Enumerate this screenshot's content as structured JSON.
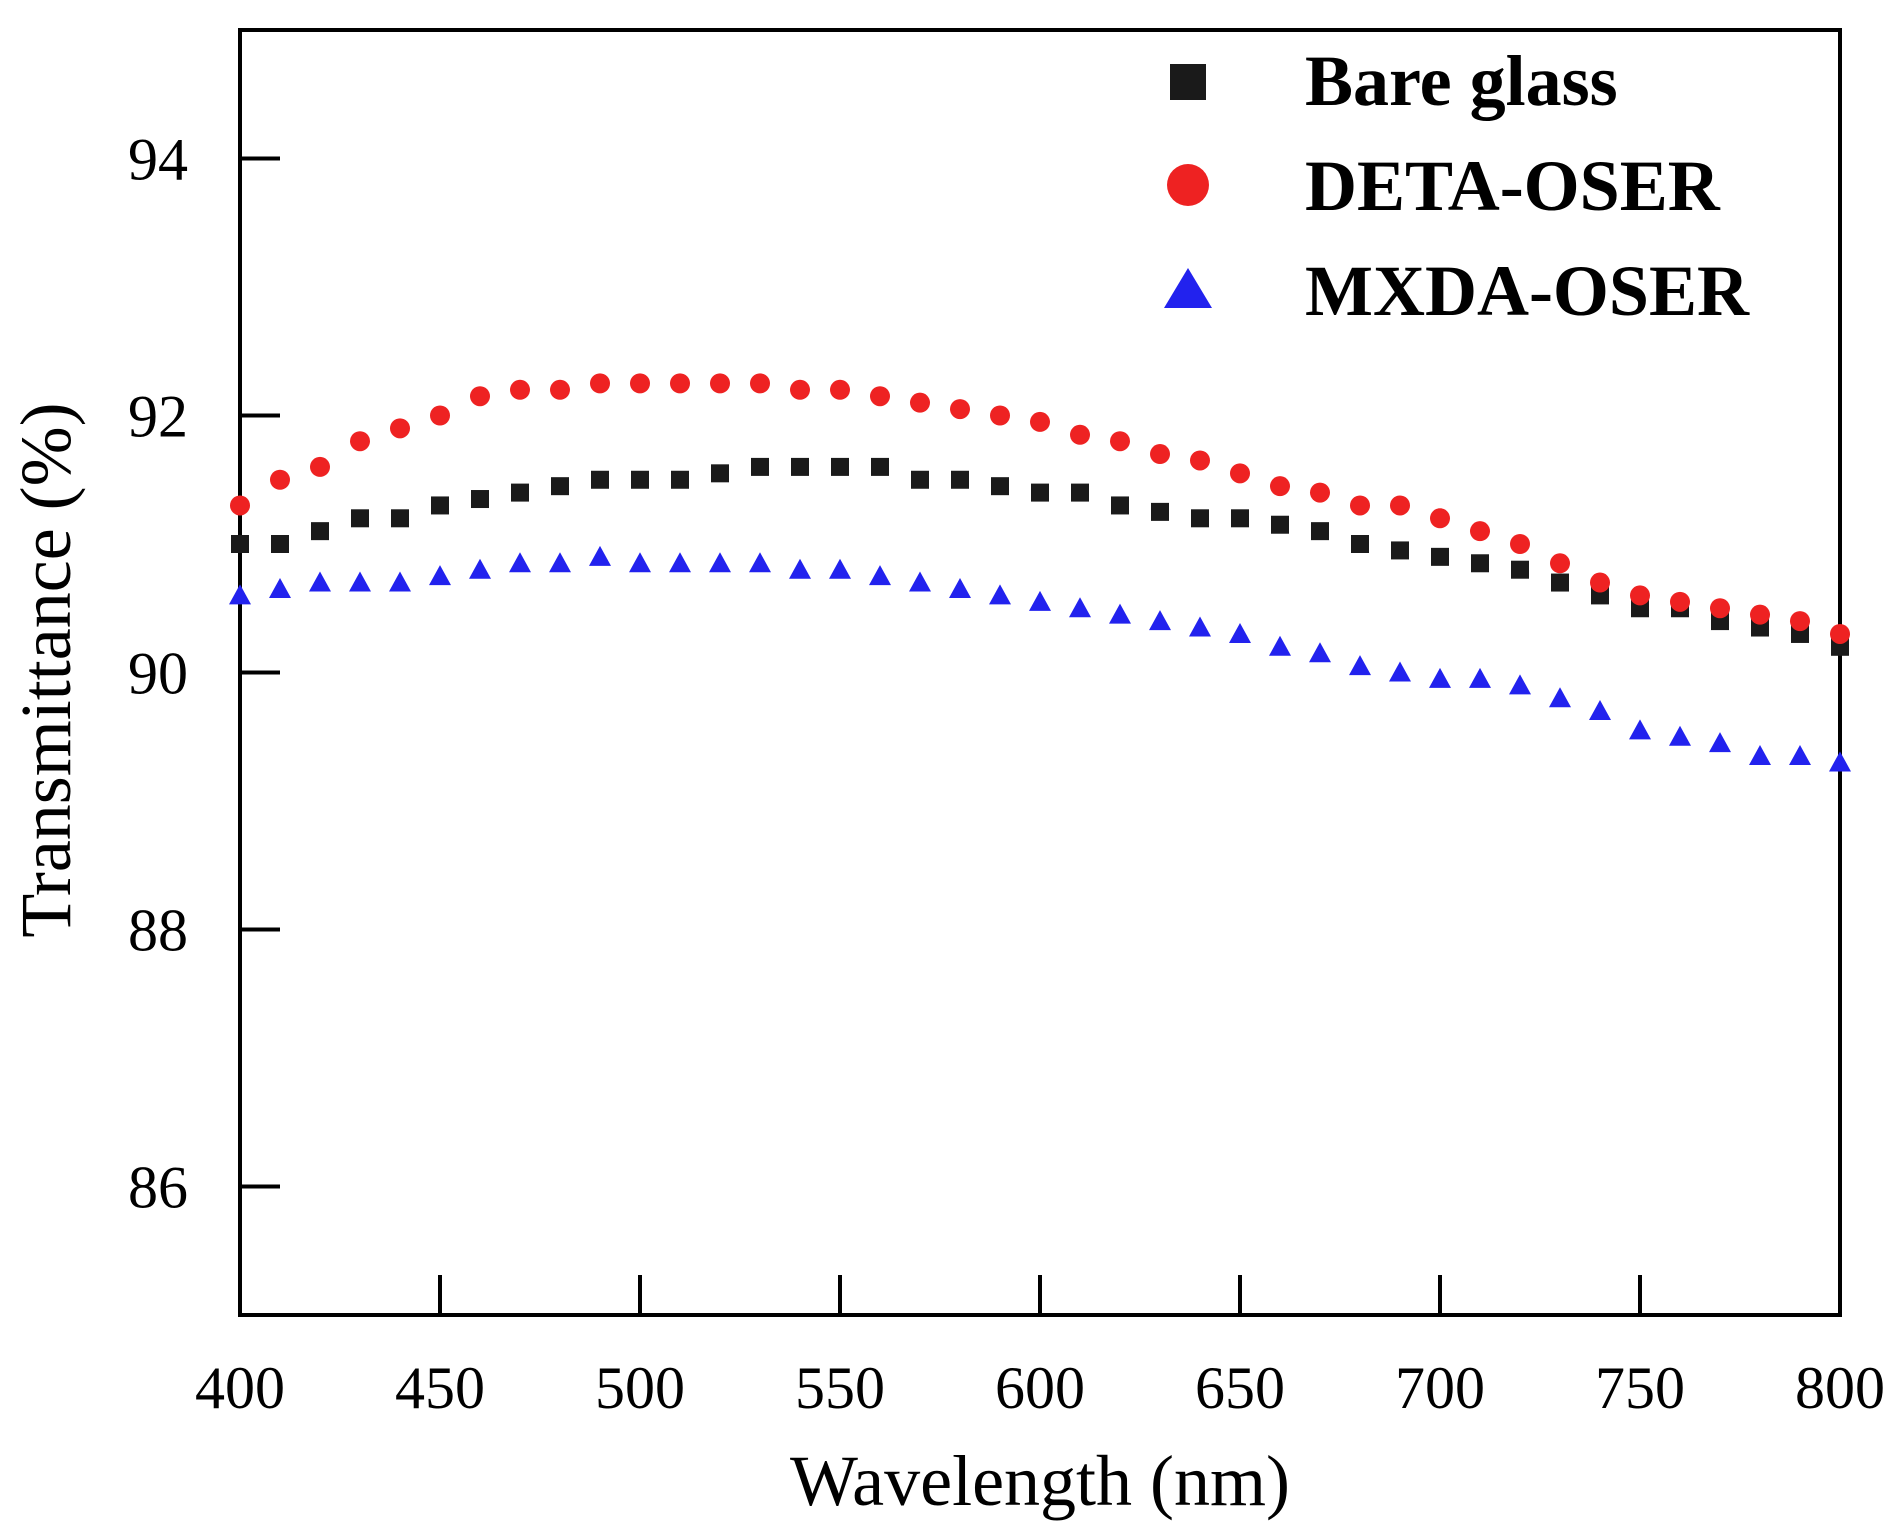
{
  "chart_data": {
    "type": "scatter",
    "title": "",
    "xlabel": "Wavelength (nm)",
    "ylabel": "Transmittance (%)",
    "xlim": [
      400,
      800
    ],
    "ylim": [
      85,
      95
    ],
    "xticks": [
      400,
      450,
      500,
      550,
      600,
      650,
      700,
      750,
      800
    ],
    "yticks": [
      86,
      88,
      90,
      92,
      94
    ],
    "grid": false,
    "legend_position": "top-right",
    "series": [
      {
        "name": "Bare glass",
        "marker": "square",
        "color": "#1a1a1a",
        "x": [
          400,
          410,
          420,
          430,
          440,
          450,
          460,
          470,
          480,
          490,
          500,
          510,
          520,
          530,
          540,
          550,
          560,
          570,
          580,
          590,
          600,
          610,
          620,
          630,
          640,
          650,
          660,
          670,
          680,
          690,
          700,
          710,
          720,
          730,
          740,
          750,
          760,
          770,
          780,
          790,
          800
        ],
        "y": [
          91.0,
          91.0,
          91.1,
          91.2,
          91.2,
          91.3,
          91.35,
          91.4,
          91.45,
          91.5,
          91.5,
          91.5,
          91.55,
          91.6,
          91.6,
          91.6,
          91.6,
          91.5,
          91.5,
          91.45,
          91.4,
          91.4,
          91.3,
          91.25,
          91.2,
          91.2,
          91.15,
          91.1,
          91.0,
          90.95,
          90.9,
          90.85,
          90.8,
          90.7,
          90.6,
          90.5,
          90.5,
          90.4,
          90.35,
          90.3,
          90.2
        ]
      },
      {
        "name": "DETA-OSER",
        "marker": "circle",
        "color": "#ee2222",
        "x": [
          400,
          410,
          420,
          430,
          440,
          450,
          460,
          470,
          480,
          490,
          500,
          510,
          520,
          530,
          540,
          550,
          560,
          570,
          580,
          590,
          600,
          610,
          620,
          630,
          640,
          650,
          660,
          670,
          680,
          690,
          700,
          710,
          720,
          730,
          740,
          750,
          760,
          770,
          780,
          790,
          800
        ],
        "y": [
          91.3,
          91.5,
          91.6,
          91.8,
          91.9,
          92.0,
          92.15,
          92.2,
          92.2,
          92.25,
          92.25,
          92.25,
          92.25,
          92.25,
          92.2,
          92.2,
          92.15,
          92.1,
          92.05,
          92.0,
          91.95,
          91.85,
          91.8,
          91.7,
          91.65,
          91.55,
          91.45,
          91.4,
          91.3,
          91.3,
          91.2,
          91.1,
          91.0,
          90.85,
          90.7,
          90.6,
          90.55,
          90.5,
          90.45,
          90.4,
          90.3
        ]
      },
      {
        "name": "MXDA-OSER",
        "marker": "triangle",
        "color": "#2222ee",
        "x": [
          400,
          410,
          420,
          430,
          440,
          450,
          460,
          470,
          480,
          490,
          500,
          510,
          520,
          530,
          540,
          550,
          560,
          570,
          580,
          590,
          600,
          610,
          620,
          630,
          640,
          650,
          660,
          670,
          680,
          690,
          700,
          710,
          720,
          730,
          740,
          750,
          760,
          770,
          780,
          790,
          800
        ],
        "y": [
          90.6,
          90.65,
          90.7,
          90.7,
          90.7,
          90.75,
          90.8,
          90.85,
          90.85,
          90.9,
          90.85,
          90.85,
          90.85,
          90.85,
          90.8,
          90.8,
          90.75,
          90.7,
          90.65,
          90.6,
          90.55,
          90.5,
          90.45,
          90.4,
          90.35,
          90.3,
          90.2,
          90.15,
          90.05,
          90.0,
          89.95,
          89.95,
          89.9,
          89.8,
          89.7,
          89.55,
          89.5,
          89.45,
          89.35,
          89.35,
          89.3
        ]
      }
    ]
  }
}
